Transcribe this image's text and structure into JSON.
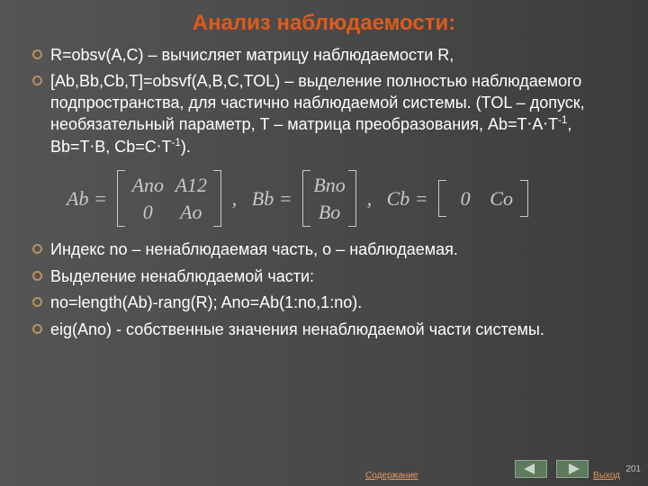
{
  "colors": {
    "background_grad_from": "#555555",
    "background_grad_to": "#3c3c3c",
    "title_color": "#e05a1a",
    "text_color": "#ffffff",
    "eq_color": "#c8c8c8",
    "bullet_ring": "#b9915f",
    "link_color": "#e79a5f",
    "nav_fill": "#5e7a5e",
    "nav_arrow": "#c8d6c8"
  },
  "title": "Анализ наблюдаемости:",
  "bullets_top": [
    "R=obsv(A,C) – вычисляет матрицу наблюдаемости R,",
    "[Ab,Bb,Cb,T]=obsvf(A,B,C,TOL) – выделение полностью наблюдаемого подпространства, для частично наблюдаемой системы. (TOL – допуск, необязательный параметр, T – матрица преобразования, Ab=Т⋅А⋅T-1, Bb=T⋅B, Cb=C⋅T-1)."
  ],
  "equation": {
    "Ab": {
      "r1": [
        "Ano",
        "A12"
      ],
      "r2": [
        "0",
        "Ao"
      ]
    },
    "Bb": {
      "r1": [
        "Bno"
      ],
      "r2": [
        "Bo"
      ]
    },
    "Cb": [
      "0",
      "Co"
    ]
  },
  "bullets_bottom": [
    "Индекс no – ненаблюдаемая часть, о – наблюдаемая.",
    "Выделение ненаблюдаемой части:",
    "no=length(Ab)-rang(R);   Ano=Ab(1:no,1:no).",
    "eig(Ano) - собственные значения ненаблюдаемой части системы."
  ],
  "footer": {
    "toc": "Содержание",
    "exit": "Выход",
    "page": "201"
  }
}
